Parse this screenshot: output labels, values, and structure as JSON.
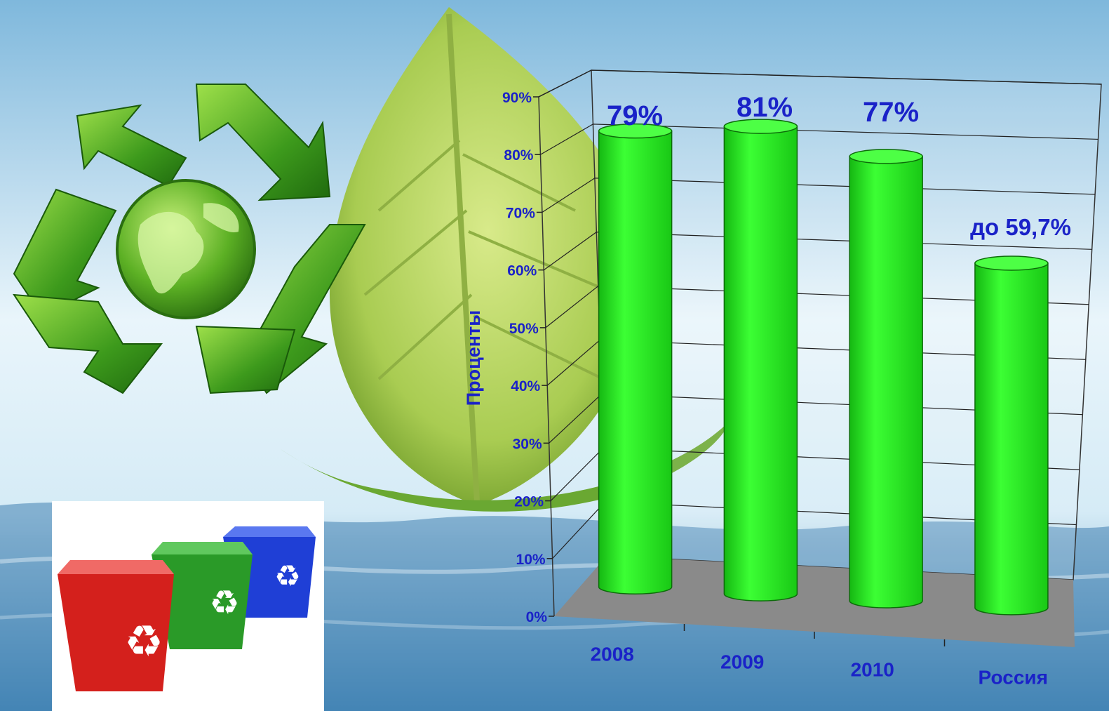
{
  "chart_data": {
    "type": "bar",
    "categories": [
      "2008",
      "2009",
      "2010",
      "Россия"
    ],
    "values": [
      79,
      81,
      77,
      59.7
    ],
    "data_labels": [
      "79%",
      "81%",
      "77%",
      "до 59,7%"
    ],
    "ylabel": "Проценты",
    "ylim": [
      0,
      90
    ],
    "y_ticks": [
      "0%",
      "10%",
      "20%",
      "30%",
      "40%",
      "50%",
      "60%",
      "70%",
      "80%",
      "90%"
    ],
    "grid": true,
    "style": "3d-cylinder",
    "colors": {
      "bar": "#22e51c",
      "bar_edge": "#0d6b0a",
      "label": "#1a22c8",
      "floor": "#8a8a8a"
    }
  },
  "decor": {
    "recycle_symbol": "recycle-globe-icon",
    "bins": [
      "red-bin",
      "green-bin",
      "blue-bin"
    ],
    "bin_colors": [
      "#d4201c",
      "#2a9a28",
      "#1f3fd6"
    ],
    "leaf": "leaf-illustration",
    "water": "water-reflection"
  }
}
